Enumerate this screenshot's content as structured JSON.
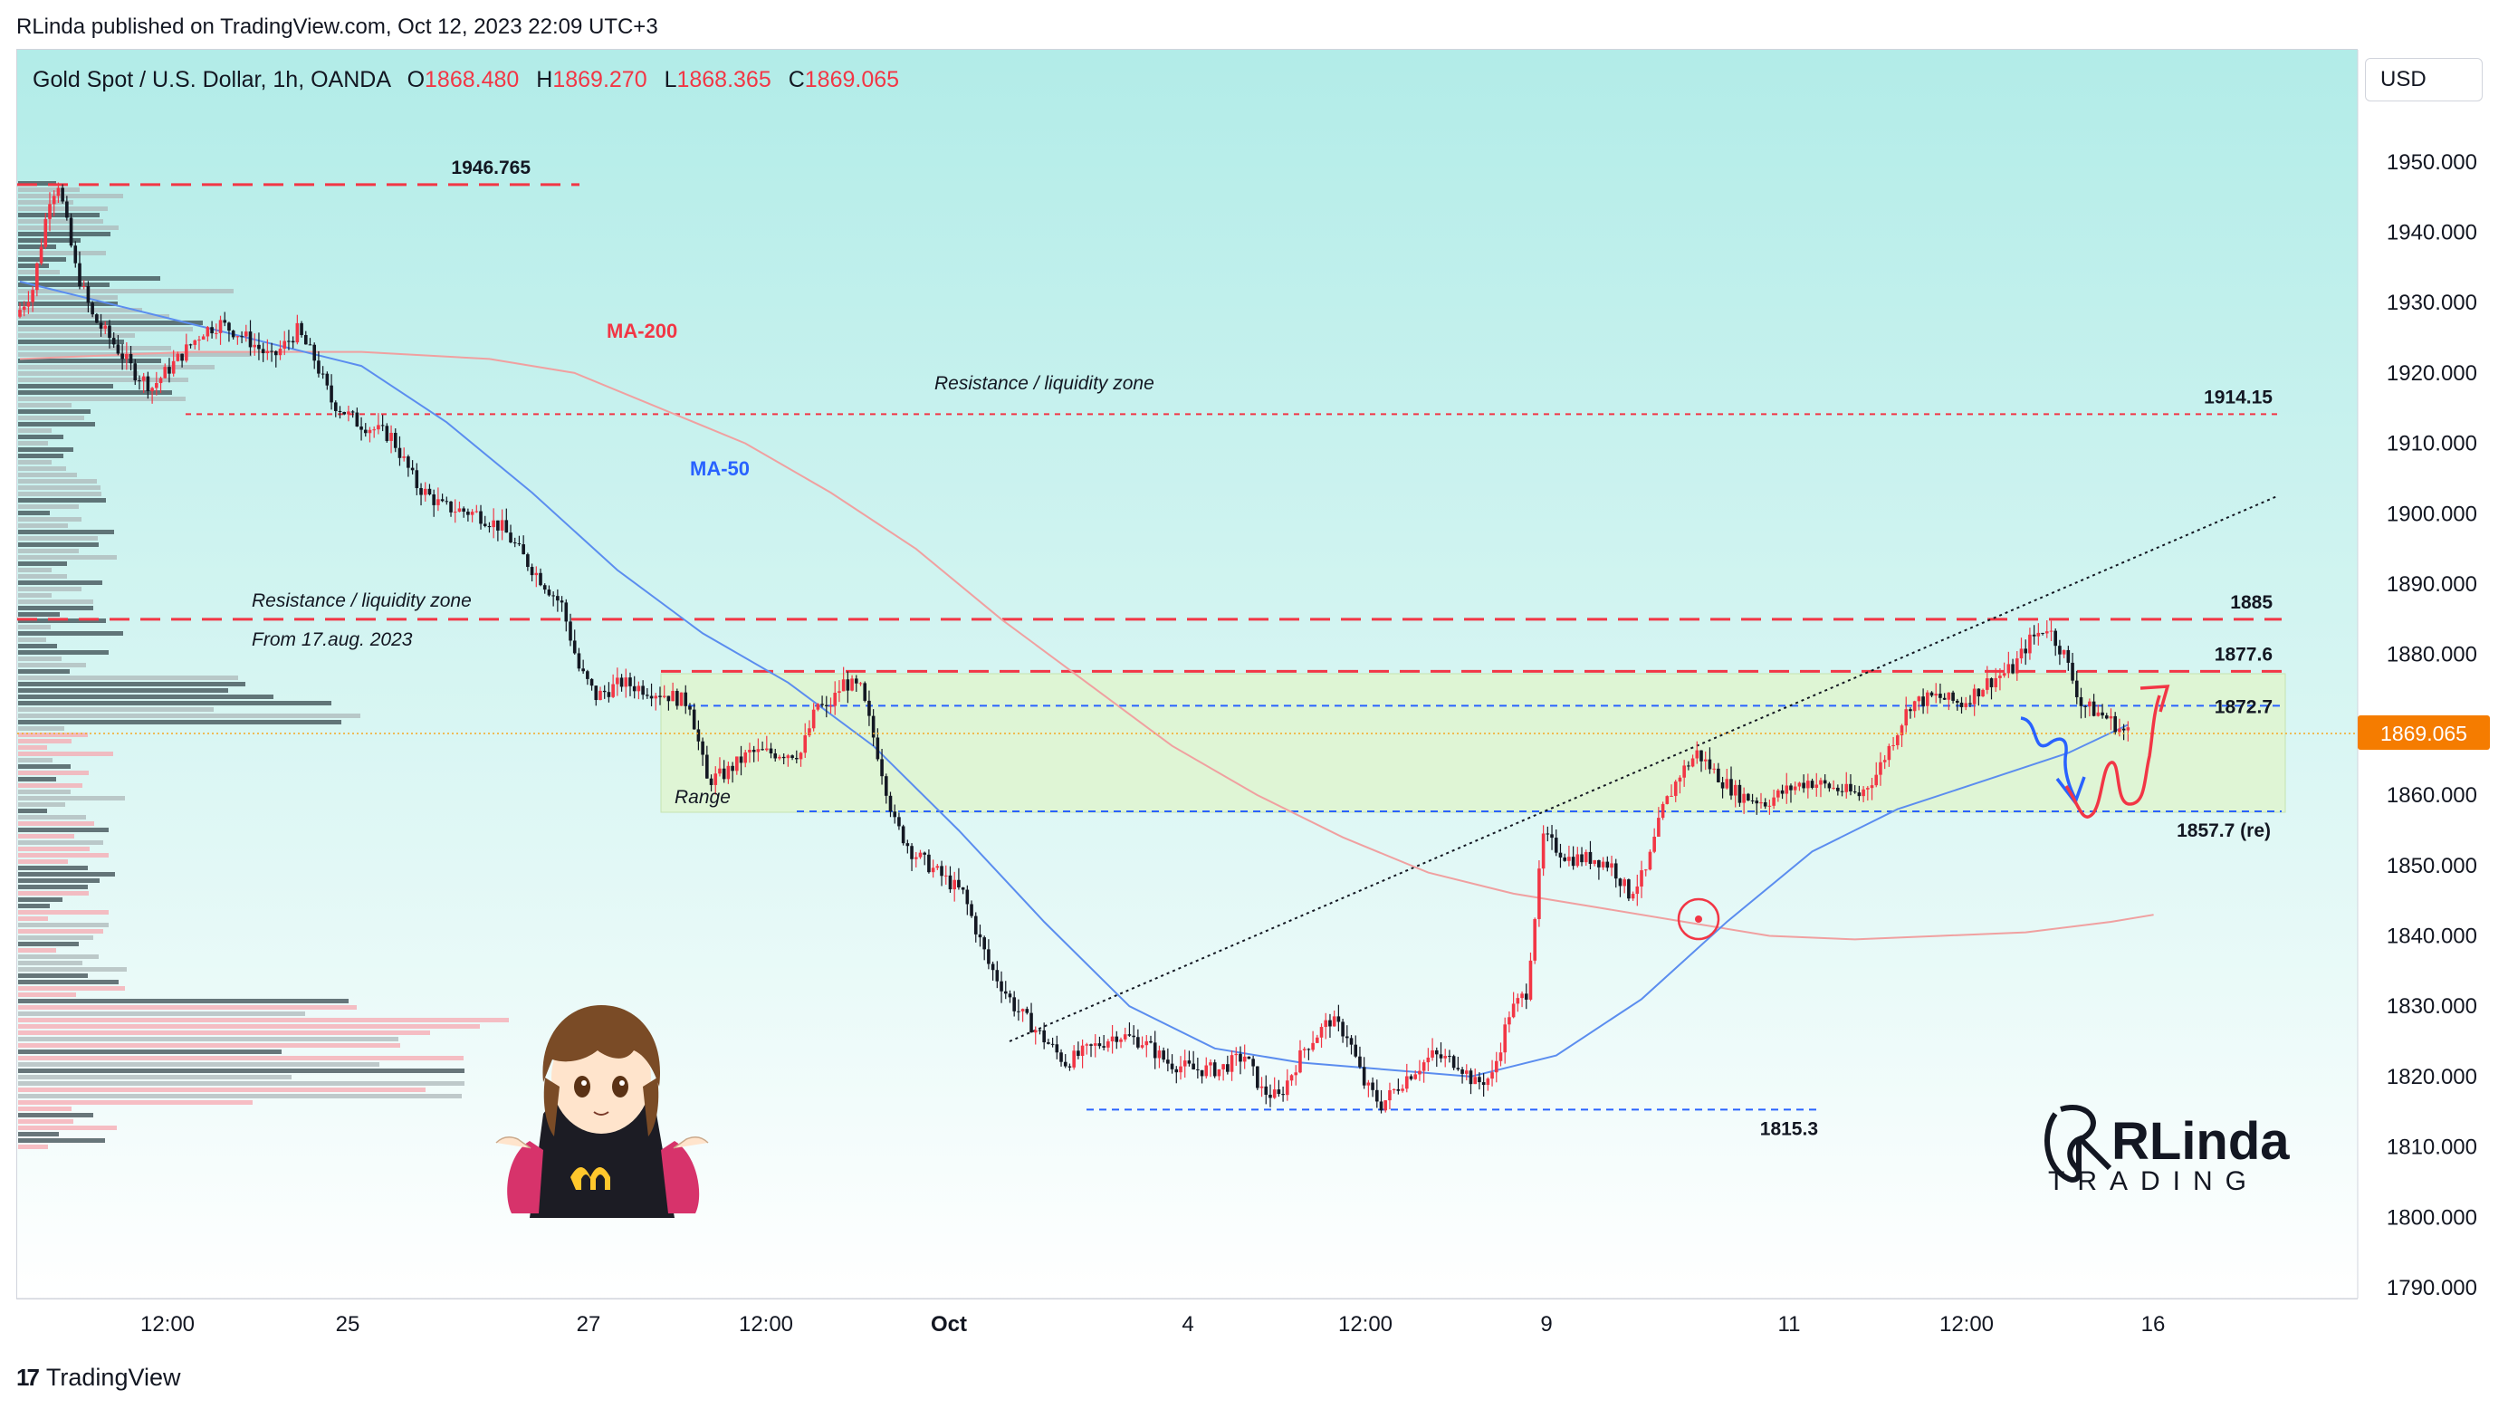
{
  "header": {
    "published_by": "RLinda published on TradingView.com, Oct 12, 2023 22:09 UTC+3"
  },
  "symbol": {
    "name": "Gold Spot / U.S. Dollar, 1h, OANDA",
    "open_key": "O",
    "open": "1868.480",
    "high_key": "H",
    "high": "1869.270",
    "low_key": "L",
    "low": "1868.365",
    "close_key": "C",
    "close": "1869.065"
  },
  "currency": "USD",
  "footer": {
    "brand": "TradingView"
  },
  "logo": {
    "name": "RLinda",
    "sub": "TRADING"
  },
  "colors": {
    "up": "#f23645",
    "down": "#131722",
    "ma50": "#5b8def",
    "ma200": "#f0a0a0",
    "range": "#dff5cf",
    "bg_top": "#b2ece8"
  },
  "chart_data": {
    "type": "candlestick",
    "title": "",
    "ylim": [
      1790,
      1955
    ],
    "y_ticks": [
      "1790.000",
      "1800.000",
      "1810.000",
      "1820.000",
      "1830.000",
      "1840.000",
      "1850.000",
      "1860.000",
      "1870.000",
      "1880.000",
      "1890.000",
      "1900.000",
      "1910.000",
      "1920.000",
      "1930.000",
      "1940.000",
      "1950.000"
    ],
    "x_ticks": [
      "12:00",
      "25",
      "27",
      "12:00",
      "Oct",
      "4",
      "12:00",
      "9",
      "11",
      "12:00",
      "16"
    ],
    "last_price_label": "1869.065",
    "levels": [
      {
        "label": "1946.765",
        "value": 1946.765
      },
      {
        "label": "1914.15",
        "value": 1914.15
      },
      {
        "label": "1885",
        "value": 1885
      },
      {
        "label": "1877.6",
        "value": 1877.6
      },
      {
        "label": "1872.7",
        "value": 1872.7
      },
      {
        "label": "1857.7 (re)",
        "value": 1857.7
      },
      {
        "label": "1815.3",
        "value": 1815.3
      }
    ],
    "annotations": [
      {
        "text": "MA-200"
      },
      {
        "text": "MA-50"
      },
      {
        "text": "Resistance / liquidity zone"
      },
      {
        "text": "Resistance / liquidity zone"
      },
      {
        "text": "From 17.aug. 2023"
      },
      {
        "text": "Range"
      }
    ],
    "path": [
      [
        0,
        1928
      ],
      [
        2,
        1932
      ],
      [
        4,
        1945
      ],
      [
        5,
        1947
      ],
      [
        7,
        1935
      ],
      [
        9,
        1928
      ],
      [
        11,
        1925
      ],
      [
        14,
        1920
      ],
      [
        16,
        1918
      ],
      [
        19,
        1922
      ],
      [
        22,
        1926
      ],
      [
        24,
        1927
      ],
      [
        27,
        1925
      ],
      [
        30,
        1922
      ],
      [
        33,
        1926
      ],
      [
        35,
        1922
      ],
      [
        37,
        1916
      ],
      [
        40,
        1913
      ],
      [
        44,
        1911
      ],
      [
        47,
        1904
      ],
      [
        50,
        1901
      ],
      [
        54,
        1900
      ],
      [
        57,
        1898
      ],
      [
        60,
        1893
      ],
      [
        64,
        1887
      ],
      [
        66,
        1878
      ],
      [
        68,
        1874
      ],
      [
        71,
        1876
      ],
      [
        74,
        1875
      ],
      [
        77,
        1874
      ],
      [
        79,
        1873
      ],
      [
        81,
        1862
      ],
      [
        83,
        1863
      ],
      [
        86,
        1866
      ],
      [
        89,
        1866
      ],
      [
        92,
        1866
      ],
      [
        94,
        1873
      ],
      [
        95,
        1872
      ],
      [
        97,
        1876
      ],
      [
        99,
        1875
      ],
      [
        101,
        1866
      ],
      [
        103,
        1856
      ],
      [
        105,
        1852
      ],
      [
        108,
        1849
      ],
      [
        111,
        1846
      ],
      [
        114,
        1836
      ],
      [
        117,
        1830
      ],
      [
        120,
        1826
      ],
      [
        123,
        1822
      ],
      [
        126,
        1824
      ],
      [
        129,
        1826
      ],
      [
        132,
        1825
      ],
      [
        135,
        1822
      ],
      [
        138,
        1821
      ],
      [
        141,
        1821
      ],
      [
        144,
        1823
      ],
      [
        146,
        1818
      ],
      [
        148,
        1817
      ],
      [
        151,
        1824
      ],
      [
        154,
        1828
      ],
      [
        156,
        1826
      ],
      [
        158,
        1819
      ],
      [
        160,
        1816
      ],
      [
        163,
        1820
      ],
      [
        166,
        1823
      ],
      [
        169,
        1822
      ],
      [
        171,
        1819
      ],
      [
        173,
        1820
      ],
      [
        175,
        1829
      ],
      [
        177,
        1832
      ],
      [
        179,
        1854
      ],
      [
        182,
        1851
      ],
      [
        185,
        1851
      ],
      [
        187,
        1850
      ],
      [
        189,
        1846
      ],
      [
        191,
        1849
      ],
      [
        193,
        1858
      ],
      [
        195,
        1863
      ],
      [
        197,
        1866
      ],
      [
        200,
        1862
      ],
      [
        202,
        1860
      ],
      [
        205,
        1859
      ],
      [
        208,
        1861
      ],
      [
        210,
        1862
      ],
      [
        213,
        1861
      ],
      [
        216,
        1860
      ],
      [
        218,
        1863
      ],
      [
        220,
        1868
      ],
      [
        222,
        1873
      ],
      [
        225,
        1874
      ],
      [
        228,
        1873
      ],
      [
        231,
        1876
      ],
      [
        234,
        1878
      ],
      [
        236,
        1882
      ],
      [
        238,
        1884
      ],
      [
        240,
        1880
      ],
      [
        242,
        1873
      ],
      [
        245,
        1871
      ],
      [
        247,
        1869
      ]
    ],
    "x_domain": [
      0,
      265
    ],
    "ma50": [
      [
        0,
        1933
      ],
      [
        10,
        1930
      ],
      [
        20,
        1927
      ],
      [
        30,
        1924
      ],
      [
        40,
        1921
      ],
      [
        50,
        1913
      ],
      [
        60,
        1903
      ],
      [
        70,
        1892
      ],
      [
        80,
        1883
      ],
      [
        90,
        1876
      ],
      [
        100,
        1867
      ],
      [
        110,
        1855
      ],
      [
        120,
        1842
      ],
      [
        130,
        1830
      ],
      [
        140,
        1824
      ],
      [
        150,
        1822
      ],
      [
        160,
        1821
      ],
      [
        170,
        1820
      ],
      [
        180,
        1823
      ],
      [
        190,
        1831
      ],
      [
        200,
        1842
      ],
      [
        210,
        1852
      ],
      [
        220,
        1858
      ],
      [
        230,
        1862
      ],
      [
        240,
        1866
      ],
      [
        247,
        1870
      ]
    ],
    "ma200": [
      [
        0,
        1922
      ],
      [
        20,
        1923
      ],
      [
        40,
        1923
      ],
      [
        55,
        1922
      ],
      [
        65,
        1920
      ],
      [
        75,
        1915
      ],
      [
        85,
        1910
      ],
      [
        95,
        1903
      ],
      [
        105,
        1895
      ],
      [
        115,
        1885
      ],
      [
        125,
        1876
      ],
      [
        135,
        1867
      ],
      [
        145,
        1860
      ],
      [
        155,
        1854
      ],
      [
        165,
        1849
      ],
      [
        175,
        1846
      ],
      [
        185,
        1844
      ],
      [
        195,
        1842
      ],
      [
        205,
        1840
      ],
      [
        215,
        1839.5
      ],
      [
        225,
        1840
      ],
      [
        235,
        1840.5
      ],
      [
        245,
        1842
      ],
      [
        250,
        1843
      ]
    ]
  }
}
